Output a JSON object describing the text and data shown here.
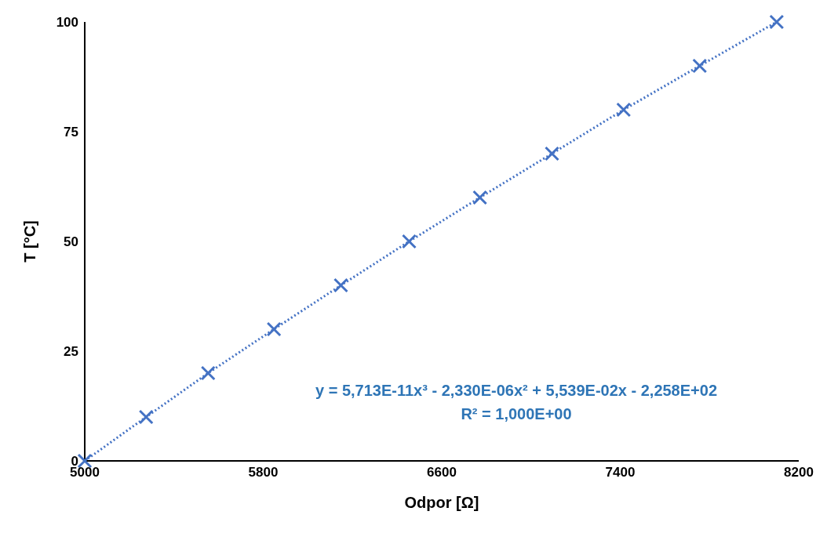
{
  "chart_data": {
    "type": "scatter",
    "xlabel": "Odpor [Ω]",
    "ylabel": "T [°C]",
    "marker": "cross",
    "series": [
      {
        "color": "#4472c4",
        "x": [
          5000,
          5275,
          5553,
          5848,
          6148,
          6454,
          6771,
          7094,
          7415,
          7756,
          8101
        ],
        "values": [
          0,
          10,
          20,
          30,
          40,
          50,
          60,
          70,
          80,
          90,
          100
        ]
      },
      {
        "type": "line",
        "color": "#4472c4",
        "line_style": "dotted",
        "marker": "none",
        "x": [
          5000,
          5275,
          5553,
          5848,
          6148,
          6454,
          6771,
          7094,
          7415,
          7756,
          8101
        ],
        "values": [
          0,
          10,
          20,
          30,
          40,
          50,
          60,
          70,
          80,
          90,
          100
        ]
      }
    ],
    "xlim": [
      5000,
      8200
    ],
    "xticks": [
      5000,
      5800,
      6600,
      7400,
      8200
    ],
    "ylim": [
      0,
      100
    ],
    "yticks": [
      0,
      25,
      50,
      75,
      100
    ],
    "grid": false,
    "legend": false,
    "annotations": [
      "y = 5,713E-11x³ - 2,330E-06x² + 5,539E-02x - 2,258E+02",
      "R² = 1,000E+00"
    ]
  }
}
